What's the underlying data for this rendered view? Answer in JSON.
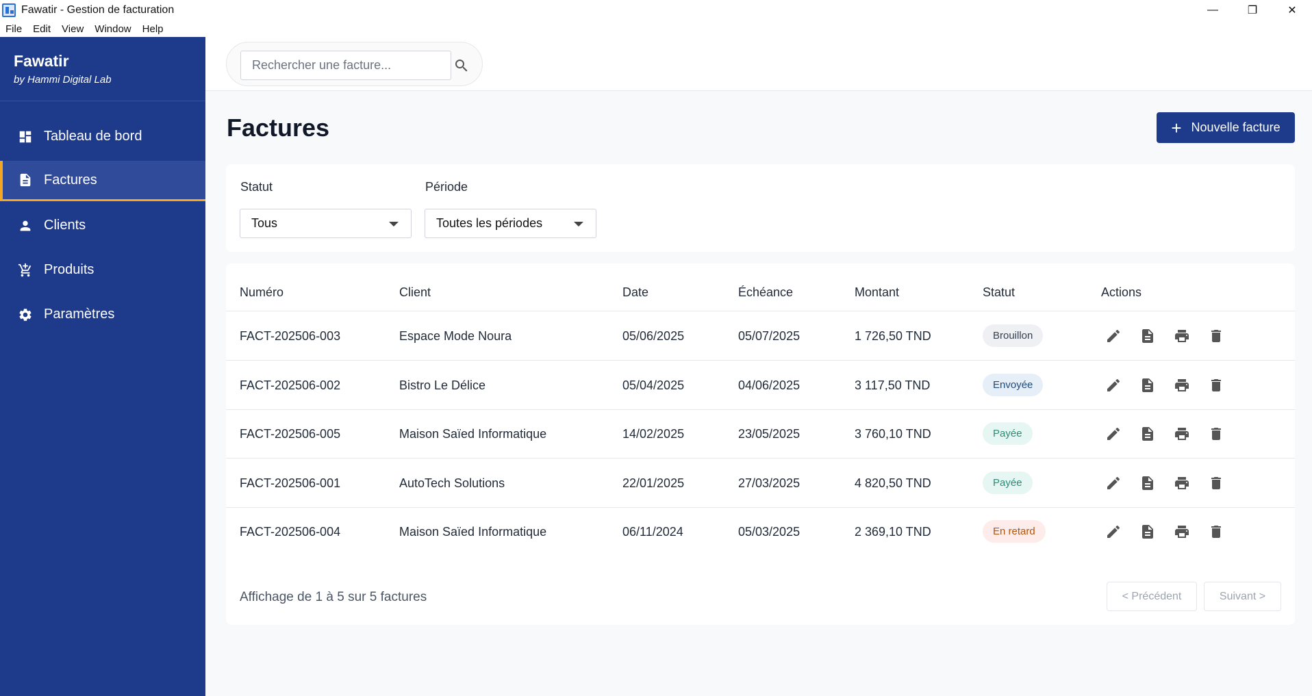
{
  "window": {
    "title": "Fawatir - Gestion de facturation",
    "controls": {
      "minimize": "—",
      "restore": "❐",
      "close": "✕"
    }
  },
  "menu": [
    "File",
    "Edit",
    "View",
    "Window",
    "Help"
  ],
  "sidebar": {
    "brand": "Fawatir",
    "subtitle": "by Hammi Digital Lab",
    "items": [
      {
        "label": "Tableau de bord",
        "icon": "dashboard-icon"
      },
      {
        "label": "Factures",
        "icon": "document-icon",
        "active": true
      },
      {
        "label": "Clients",
        "icon": "person-icon"
      },
      {
        "label": "Produits",
        "icon": "cart-icon"
      },
      {
        "label": "Paramètres",
        "icon": "gear-icon"
      }
    ]
  },
  "search": {
    "placeholder": "Rechercher une facture...",
    "value": ""
  },
  "page": {
    "title": "Factures",
    "new_button": "Nouvelle facture",
    "new_button_icon": "+"
  },
  "filters": {
    "status_label": "Statut",
    "status_value": "Tous",
    "period_label": "Période",
    "period_value": "Toutes les périodes"
  },
  "table": {
    "headers": [
      "Numéro",
      "Client",
      "Date",
      "Échéance",
      "Montant",
      "Statut",
      "Actions"
    ],
    "rows": [
      {
        "numero": "FACT-202506-003",
        "client": "Espace Mode Noura",
        "date": "05/06/2025",
        "echeance": "05/07/2025",
        "montant": "1 726,50 TND",
        "statut": "Brouillon",
        "status_bg": "#eef0f3",
        "status_fg": "#374151"
      },
      {
        "numero": "FACT-202506-002",
        "client": "Bistro Le Délice",
        "date": "05/04/2025",
        "echeance": "04/06/2025",
        "montant": "3 117,50 TND",
        "statut": "Envoyée",
        "status_bg": "#e6eef7",
        "status_fg": "#1e4b7a"
      },
      {
        "numero": "FACT-202506-005",
        "client": "Maison Saïed Informatique",
        "date": "14/02/2025",
        "echeance": "23/05/2025",
        "montant": "3 760,10 TND",
        "statut": "Payée",
        "status_bg": "#e6f6f3",
        "status_fg": "#2a8c78"
      },
      {
        "numero": "FACT-202506-001",
        "client": "AutoTech Solutions",
        "date": "22/01/2025",
        "echeance": "27/03/2025",
        "montant": "4 820,50 TND",
        "statut": "Payée",
        "status_bg": "#e6f6f3",
        "status_fg": "#2a8c78"
      },
      {
        "numero": "FACT-202506-004",
        "client": "Maison Saïed Informatique",
        "date": "06/11/2024",
        "echeance": "05/03/2025",
        "montant": "2 369,10 TND",
        "statut": "En retard",
        "status_bg": "#fdecea",
        "status_fg": "#b45309"
      }
    ],
    "action_icons": [
      "edit-icon",
      "document-icon",
      "print-icon",
      "delete-icon"
    ]
  },
  "pagination": {
    "summary": "Affichage de 1 à 5 sur 5 factures",
    "prev": "< Précédent",
    "next": "Suivant >"
  },
  "colors": {
    "sidebar": "#1e3a8a",
    "accent": "#f5a623",
    "primary_button": "#1e3a8a"
  }
}
